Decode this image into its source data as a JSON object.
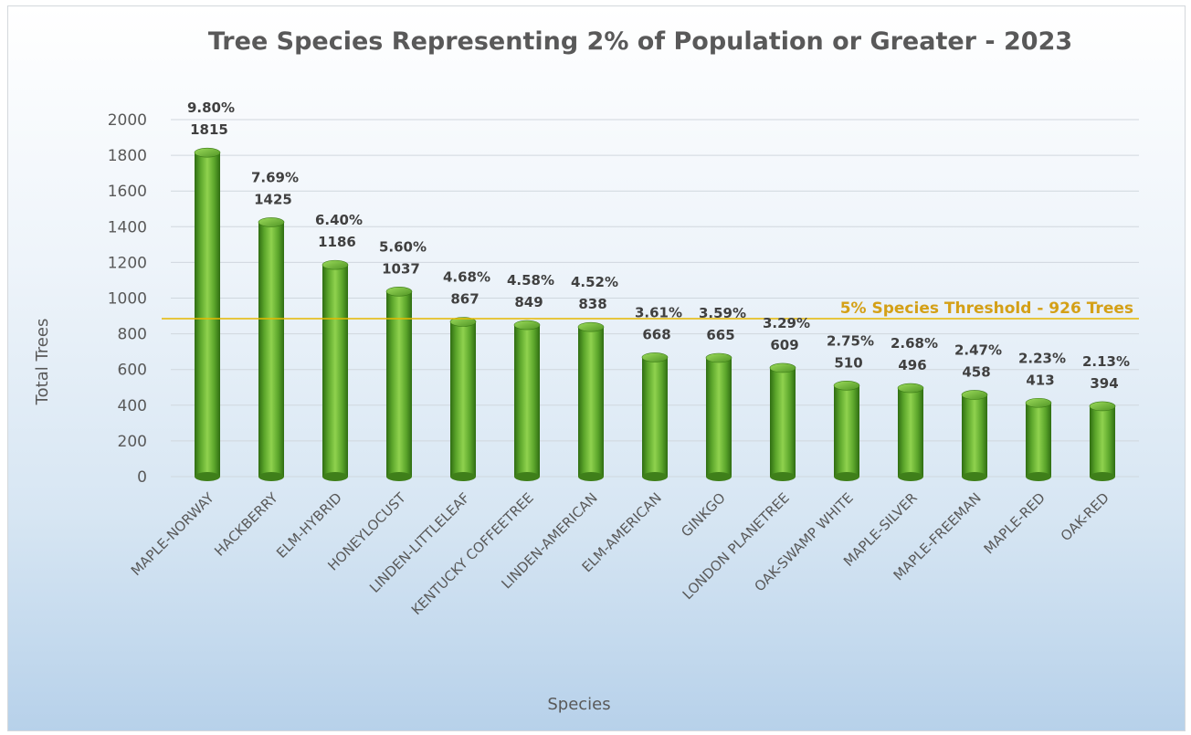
{
  "chart_data": {
    "type": "bar",
    "title": "Tree Species Representing 2% of Population or Greater - 2023",
    "xlabel": "Species",
    "ylabel": "Total Trees",
    "ylim": [
      0,
      2000
    ],
    "yticks": [
      0,
      200,
      400,
      600,
      800,
      1000,
      1200,
      1400,
      1600,
      1800,
      2000
    ],
    "grid": true,
    "categories": [
      "MAPLE-NORWAY",
      "HACKBERRY",
      "ELM-HYBRID",
      "HONEYLOCUST",
      "LINDEN-LITTLELEAF",
      "KENTUCKY COFFEETREE",
      "LINDEN-AMERICAN",
      "ELM-AMERICAN",
      "GINKGO",
      "LONDON PLANETREE",
      "OAK-SWAMP WHITE",
      "MAPLE-SILVER",
      "MAPLE-FREEMAN",
      "MAPLE-RED",
      "OAK-RED"
    ],
    "values": [
      1815,
      1425,
      1186,
      1037,
      867,
      849,
      838,
      668,
      665,
      609,
      510,
      496,
      458,
      413,
      394
    ],
    "percent_labels": [
      "9.80%",
      "7.69%",
      "6.40%",
      "5.60%",
      "4.68%",
      "4.58%",
      "4.52%",
      "3.61%",
      "3.59%",
      "3.29%",
      "2.75%",
      "2.68%",
      "2.47%",
      "2.23%",
      "2.13%"
    ],
    "threshold": {
      "value": 926,
      "label": "5% Species Threshold - 926 Trees",
      "color": "#e6b800"
    },
    "bar_color": "#6ab42e"
  }
}
